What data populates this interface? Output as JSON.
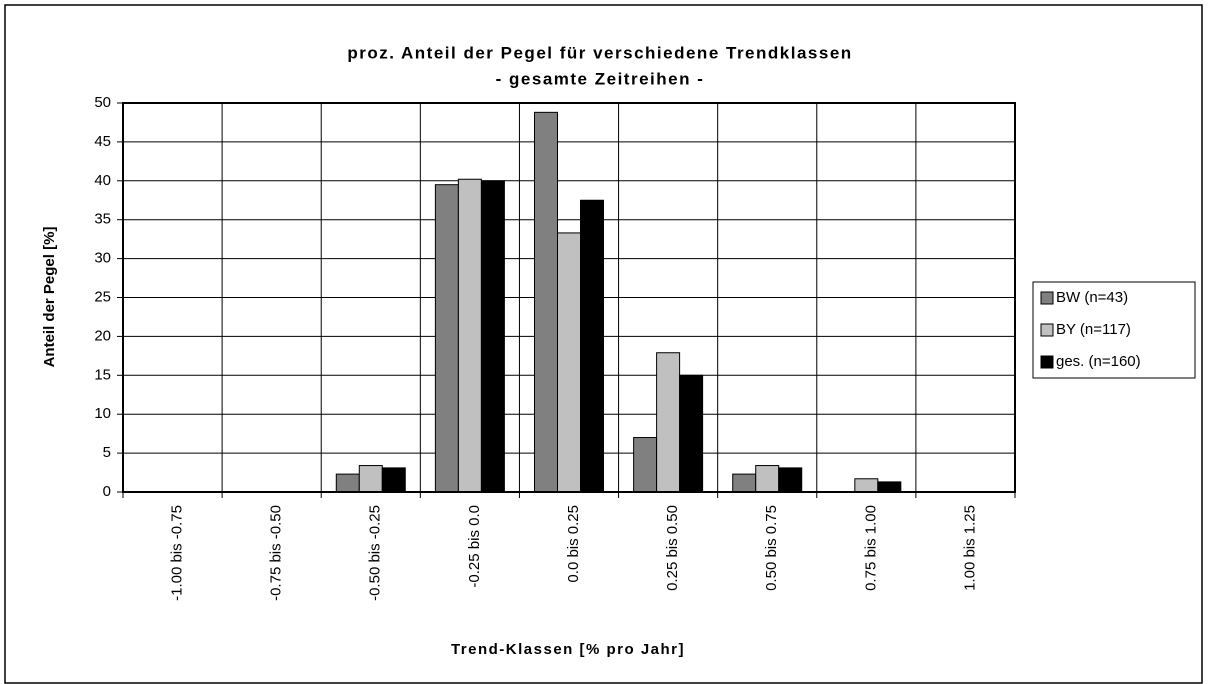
{
  "chart_data": {
    "type": "bar",
    "title": "proz. Anteil der Pegel für verschiedene Trendklassen",
    "subtitle": "- gesamte Zeitreihen -",
    "x_label": "Trend-Klassen [% pro Jahr]",
    "y_label": "Anteil der Pegel [%]",
    "categories": [
      "-1.00 bis -0.75",
      "-0.75 bis -0.50",
      "-0.50 bis -0.25",
      "-0.25 bis 0.0",
      "0.0 bis 0.25",
      "0.25 bis 0.50",
      "0.50 bis 0.75",
      "0.75 bis 1.00",
      "1.00 bis 1.25"
    ],
    "series": [
      {
        "name": "BW (n=43)",
        "color": "#808080",
        "values": [
          0,
          0,
          2.3,
          39.5,
          48.8,
          7.0,
          2.3,
          0,
          0
        ]
      },
      {
        "name": "BY (n=117)",
        "color": "#c0c0c0",
        "values": [
          0,
          0,
          3.4,
          40.2,
          33.3,
          17.9,
          3.4,
          1.7,
          0
        ]
      },
      {
        "name": "ges. (n=160)",
        "color": "#000000",
        "values": [
          0,
          0,
          3.1,
          40.0,
          37.5,
          15.0,
          3.1,
          1.3,
          0
        ]
      }
    ],
    "ylim": [
      0,
      50
    ],
    "yticks": [
      0,
      5,
      10,
      15,
      20,
      25,
      30,
      35,
      40,
      45,
      50
    ],
    "grid": true,
    "legend": "right"
  }
}
